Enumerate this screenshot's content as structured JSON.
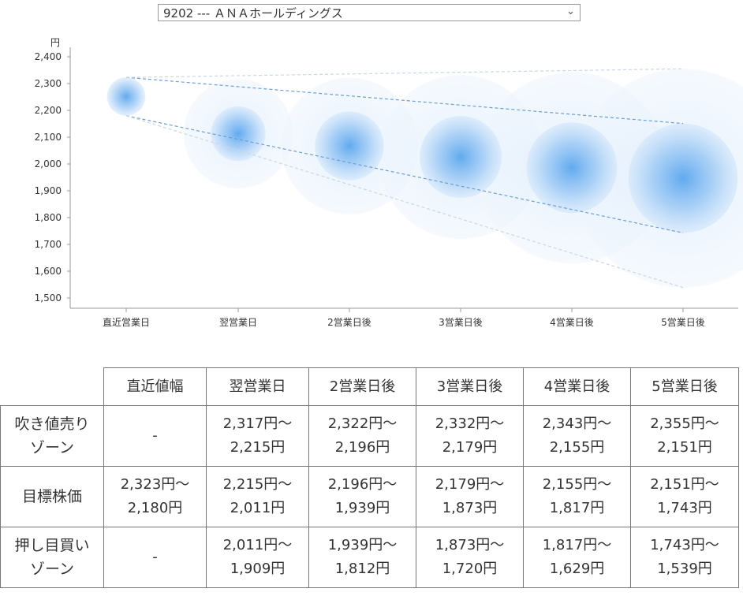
{
  "selector": {
    "value": "9202 --- ＡＮＡホールディングス"
  },
  "chart_data": {
    "type": "bubble-projection",
    "yunit": "円",
    "ylim": [
      1500,
      2400
    ],
    "yticks": [
      1500,
      1600,
      1700,
      1800,
      1900,
      2000,
      2100,
      2200,
      2300,
      2400
    ],
    "ytick_labels": [
      "1,500",
      "1,600",
      "1,700",
      "1,800",
      "1,900",
      "2,000",
      "2,100",
      "2,200",
      "2,300",
      "2,400"
    ],
    "categories": [
      "直近営業日",
      "翌営業日",
      "2営業日後",
      "3営業日後",
      "4営業日後",
      "5営業日後"
    ],
    "upper_zone_high": [
      null,
      2317,
      2322,
      2332,
      2343,
      2355
    ],
    "target_high": [
      2323,
      2215,
      2196,
      2179,
      2155,
      2151
    ],
    "target_low": [
      2180,
      2011,
      1939,
      1873,
      1817,
      1743
    ],
    "lower_zone_low": [
      null,
      1909,
      1812,
      1720,
      1629,
      1539
    ]
  },
  "table": {
    "headers": [
      "",
      "直近値幅",
      "翌営業日",
      "2営業日後",
      "3営業日後",
      "4営業日後",
      "5営業日後"
    ],
    "rows": [
      {
        "label": [
          "吹き値売り",
          "ゾーン"
        ],
        "cells": [
          [
            "-"
          ],
          [
            "2,317円～",
            "2,215円"
          ],
          [
            "2,322円～",
            "2,196円"
          ],
          [
            "2,332円～",
            "2,179円"
          ],
          [
            "2,343円～",
            "2,155円"
          ],
          [
            "2,355円～",
            "2,151円"
          ]
        ]
      },
      {
        "label": [
          "目標株価"
        ],
        "cells": [
          [
            "2,323円～",
            "2,180円"
          ],
          [
            "2,215円～",
            "2,011円"
          ],
          [
            "2,196円～",
            "1,939円"
          ],
          [
            "2,179円～",
            "1,873円"
          ],
          [
            "2,155円～",
            "1,817円"
          ],
          [
            "2,151円～",
            "1,743円"
          ]
        ]
      },
      {
        "label": [
          "押し目買い",
          "ゾーン"
        ],
        "cells": [
          [
            "-"
          ],
          [
            "2,011円～",
            "1,909円"
          ],
          [
            "1,939円～",
            "1,812円"
          ],
          [
            "1,873円～",
            "1,720円"
          ],
          [
            "1,817円～",
            "1,629円"
          ],
          [
            "1,743円～",
            "1,539円"
          ]
        ]
      }
    ]
  }
}
